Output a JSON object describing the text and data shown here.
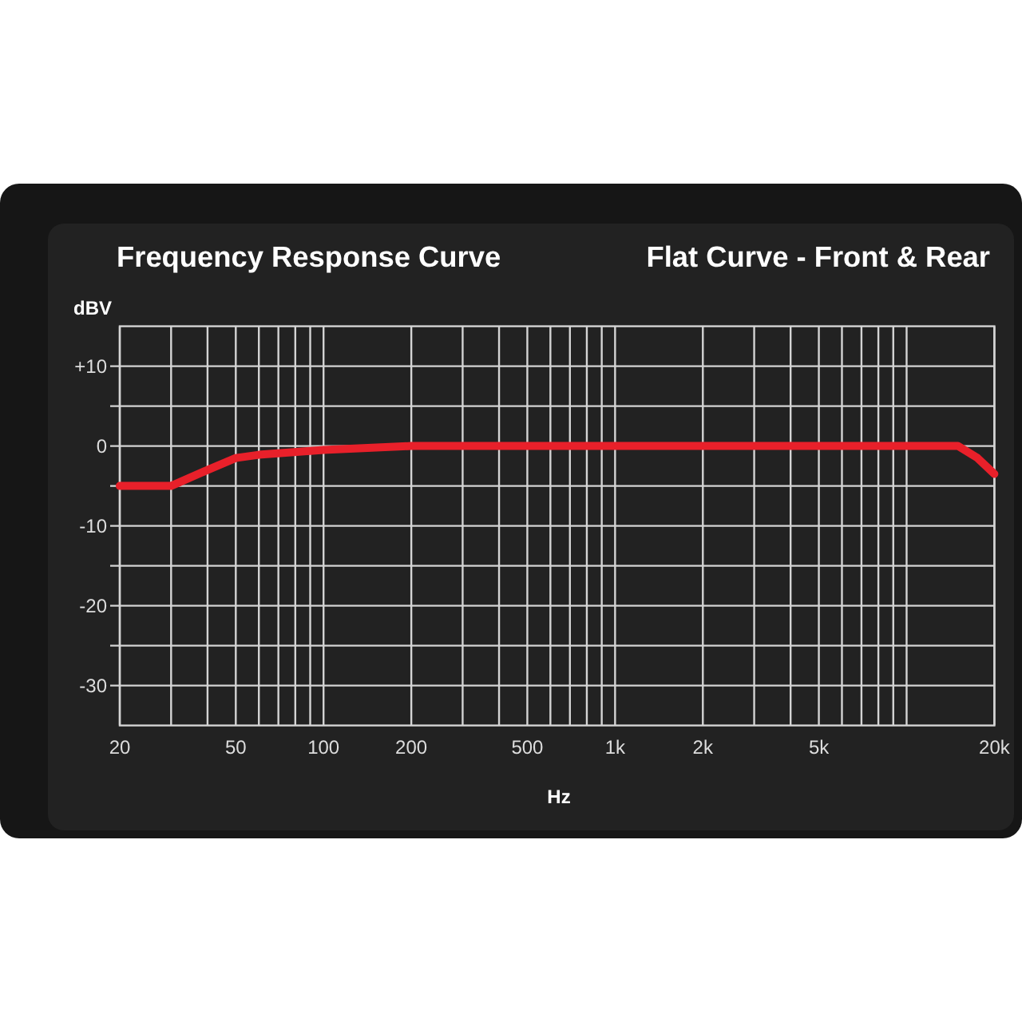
{
  "chart_data": {
    "type": "line",
    "title": "Frequency Response Curve",
    "subtitle": "Flat Curve - Front & Rear",
    "xlabel": "Hz",
    "ylabel": "dBV",
    "x": [
      20,
      30,
      40,
      50,
      60,
      100,
      200,
      15000,
      17500,
      20000
    ],
    "values": [
      -5,
      -5,
      -3,
      -1.5,
      -1.1,
      -0.5,
      0,
      0,
      -1.5,
      -3.5
    ],
    "color": "#e8202a",
    "log": "x",
    "grid": true,
    "xlim": [
      20,
      20000
    ],
    "ylim": [
      -35,
      15
    ],
    "xticks": [
      20,
      {
        "value": 30,
        "label": null
      },
      {
        "value": 40,
        "label": null
      },
      50,
      {
        "value": 60,
        "label": null
      },
      {
        "value": 70,
        "label": null
      },
      {
        "value": 80,
        "label": null
      },
      {
        "value": 90,
        "label": null
      },
      100,
      200,
      {
        "value": 300,
        "label": null
      },
      {
        "value": 400,
        "label": null
      },
      500,
      {
        "value": 600,
        "label": null
      },
      {
        "value": 700,
        "label": null
      },
      {
        "value": 800,
        "label": null
      },
      {
        "value": 900,
        "label": null
      },
      {
        "value": 1000,
        "label": "1k"
      },
      {
        "value": 2000,
        "label": "2k"
      },
      {
        "value": 3000,
        "label": null
      },
      {
        "value": 4000,
        "label": null
      },
      {
        "value": 5000,
        "label": "5k"
      },
      {
        "value": 6000,
        "label": null
      },
      {
        "value": 7000,
        "label": null
      },
      {
        "value": 8000,
        "label": null
      },
      {
        "value": 9000,
        "label": null
      },
      {
        "value": 10000,
        "label": null
      },
      {
        "value": 20000,
        "label": "20k"
      }
    ],
    "yticks": [
      {
        "value": 10,
        "label": "+10"
      },
      {
        "value": 5,
        "label": null
      },
      0,
      {
        "value": -5,
        "label": null
      },
      -10,
      {
        "value": -15,
        "label": null
      },
      -20,
      {
        "value": -25,
        "label": null
      },
      -30
    ]
  }
}
